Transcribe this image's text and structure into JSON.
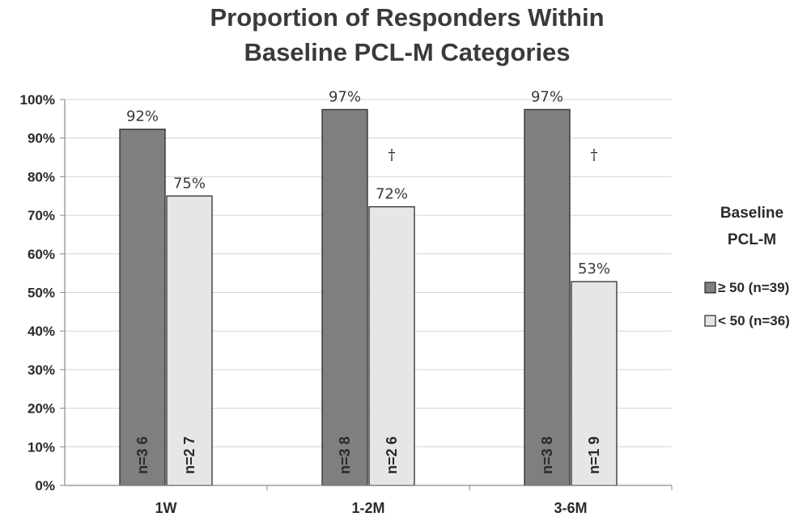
{
  "chart_data": {
    "type": "bar",
    "title": [
      "Proportion of Responders Within",
      "Baseline PCL-M Categories"
    ],
    "xlabel": "",
    "ylabel": "",
    "categories": [
      "1W",
      "1-2M",
      "3-6M"
    ],
    "y_ticks": [
      "0%",
      "10%",
      "20%",
      "30%",
      "40%",
      "50%",
      "60%",
      "70%",
      "80%",
      "90%",
      "100%"
    ],
    "ylim": [
      0,
      100
    ],
    "grid": true,
    "series": [
      {
        "name": "≥ 50 (n=39)",
        "color": "#7f7f7f",
        "values": [
          92.3,
          97.4,
          97.4
        ],
        "data_labels": [
          "92%",
          "97%",
          "97%"
        ],
        "n_labels": [
          "n=3 6",
          "n=3 8",
          "n=3 8"
        ]
      },
      {
        "name": "< 50 (n=36)",
        "color": "#e6e6e6",
        "values": [
          75.0,
          72.2,
          52.8
        ],
        "data_labels": [
          "75%",
          "72%",
          "53%"
        ],
        "n_labels": [
          "n=2 7",
          "n=2 6",
          "n=1 9"
        ]
      }
    ],
    "annotations": [
      {
        "category": "1-2M",
        "text": "†"
      },
      {
        "category": "3-6M",
        "text": "†"
      }
    ],
    "legend": {
      "title": [
        "Baseline",
        "PCL-M"
      ],
      "position": "right"
    }
  }
}
